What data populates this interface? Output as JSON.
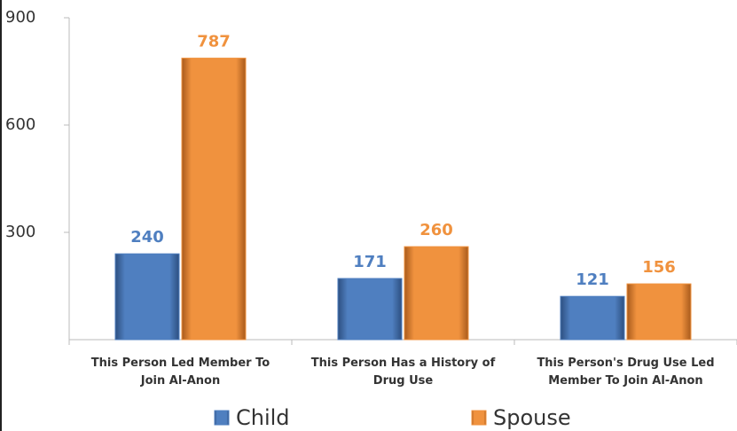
{
  "chart_data": {
    "type": "bar",
    "categories": [
      "This Person Led Member To Join Al-Anon",
      "This Person Has a History of Drug Use",
      "This Person's Drug Use Led Member To Join Al-Anon"
    ],
    "series": [
      {
        "name": "Child",
        "color": "#4f7fc0",
        "values": [
          240,
          171,
          121
        ]
      },
      {
        "name": "Spouse",
        "color": "#f0923e",
        "values": [
          787,
          260,
          156
        ]
      }
    ],
    "ylim": [
      0,
      900
    ],
    "yticks": [
      300,
      600,
      900
    ],
    "legend": "bottom"
  }
}
